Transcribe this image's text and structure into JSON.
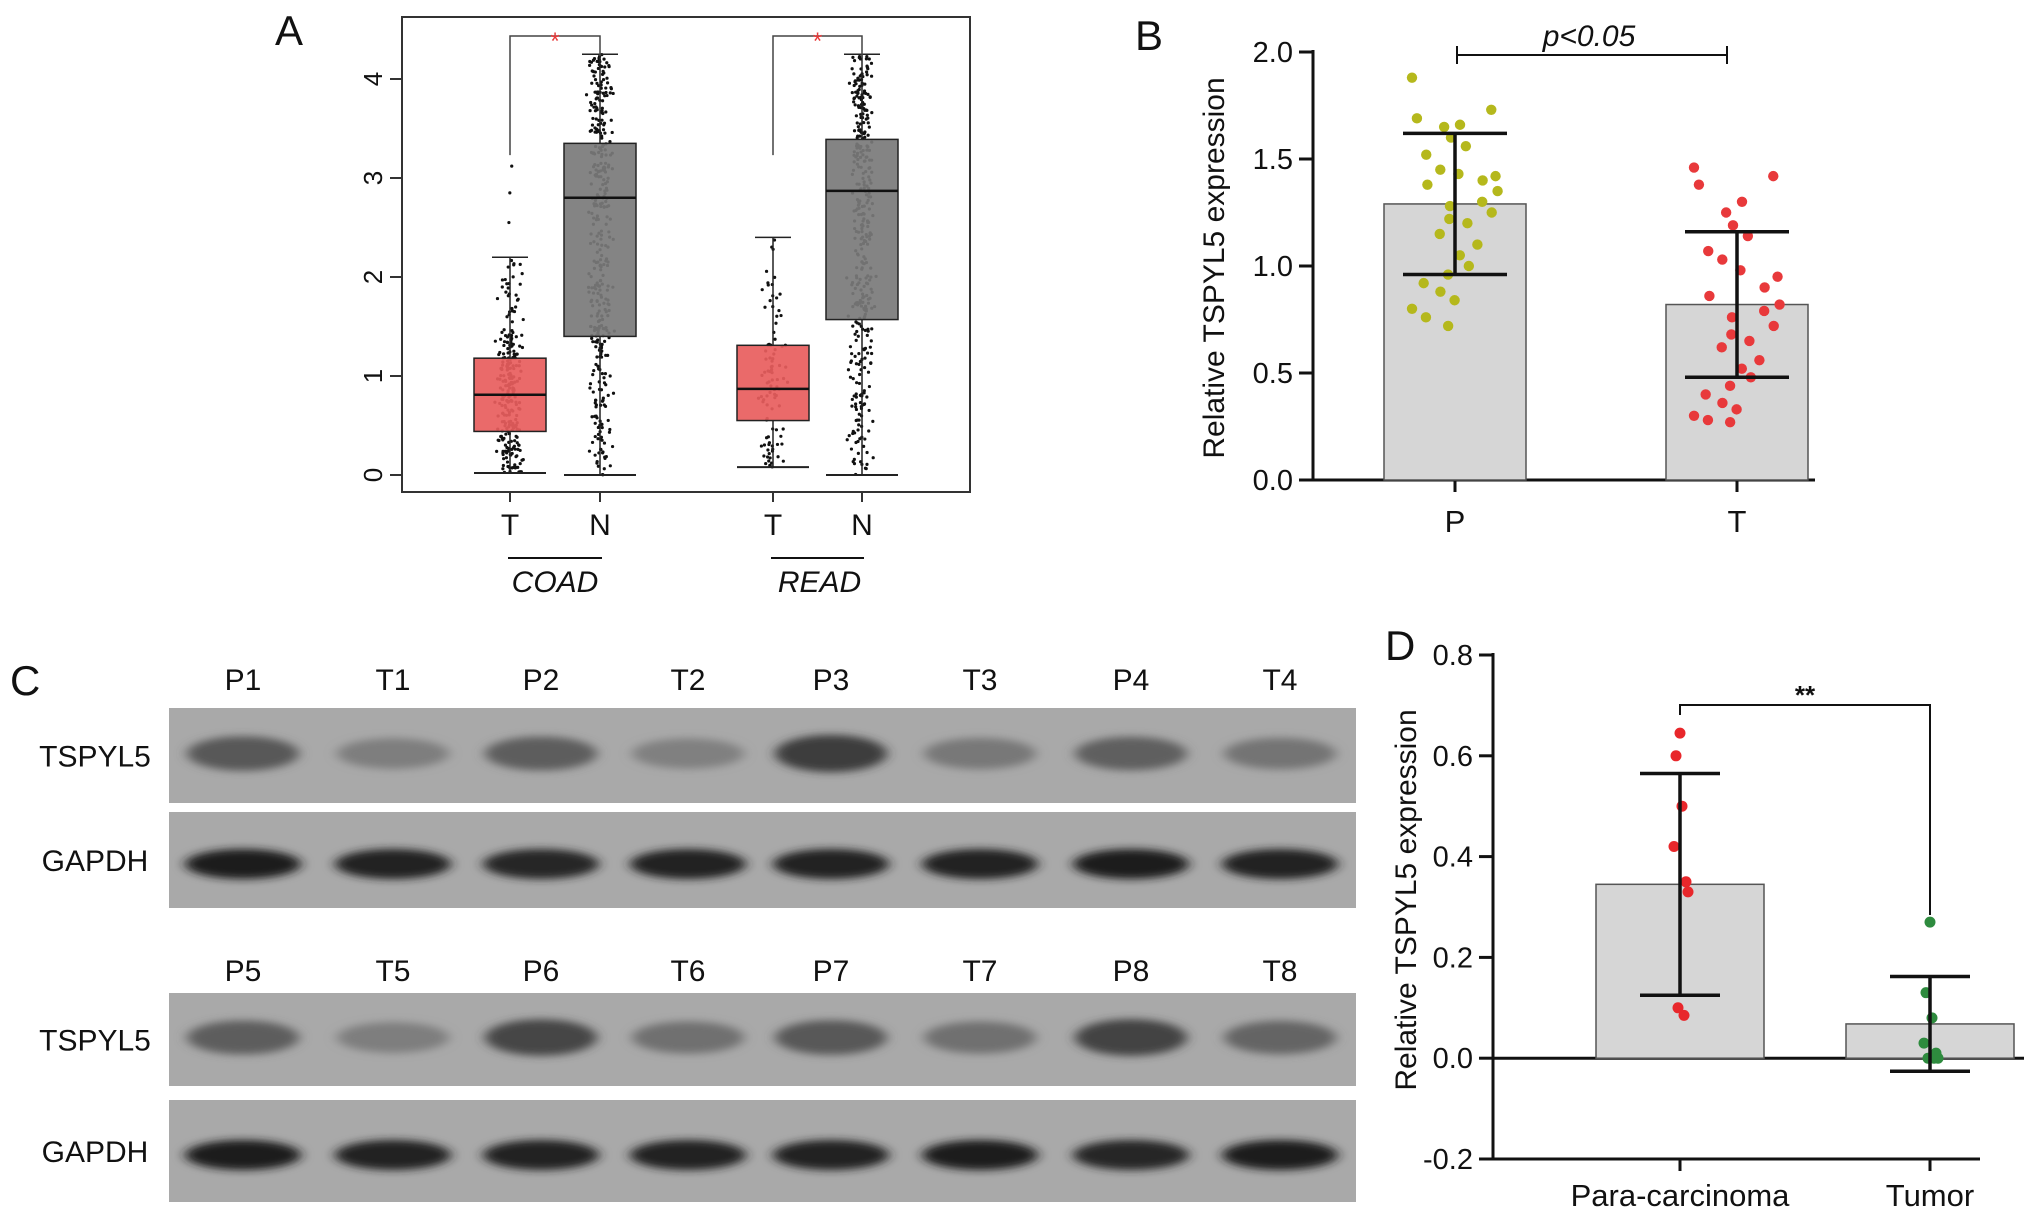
{
  "panels": {
    "a": {
      "label": "A",
      "significance": "*",
      "chart_data": {
        "type": "box",
        "ylim": [
          -0.2,
          4.5
        ],
        "yticks": [
          0,
          1,
          2,
          3,
          4
        ],
        "groups": [
          {
            "name": "COAD",
            "boxes": [
              {
                "label": "T",
                "whisker_low": 0.02,
                "q1": 0.44,
                "median": 0.81,
                "q3": 1.18,
                "whisker_high": 2.2,
                "max": 3.12,
                "color": "#e85d5d"
              },
              {
                "label": "N",
                "whisker_low": 0.0,
                "q1": 1.4,
                "median": 2.8,
                "q3": 3.35,
                "whisker_high": 4.25,
                "max": 4.25,
                "color": "#7a7a7a"
              }
            ]
          },
          {
            "name": "READ",
            "boxes": [
              {
                "label": "T",
                "whisker_low": 0.08,
                "q1": 0.55,
                "median": 0.87,
                "q3": 1.31,
                "whisker_high": 2.4,
                "max": 2.4,
                "color": "#e85d5d"
              },
              {
                "label": "N",
                "whisker_low": 0.0,
                "q1": 1.57,
                "median": 2.87,
                "q3": 3.39,
                "whisker_high": 4.25,
                "max": 4.25,
                "color": "#7a7a7a"
              }
            ]
          }
        ]
      }
    },
    "b": {
      "label": "B",
      "annotation": "p<0.05",
      "chart_data": {
        "type": "bar",
        "ylabel": "Relative TSPYL5 expression",
        "ylim": [
          0,
          2.0
        ],
        "yticks": [
          "0.0",
          "0.5",
          "1.0",
          "1.5",
          "2.0"
        ],
        "categories": [
          "P",
          "T"
        ],
        "values": [
          1.29,
          0.82
        ],
        "sd": [
          0.33,
          0.34
        ],
        "point_colors": [
          "#b5b81c",
          "#e8393b"
        ],
        "points": [
          [
            1.88,
            1.73,
            1.69,
            1.66,
            1.65,
            1.6,
            1.56,
            1.52,
            1.45,
            1.43,
            1.42,
            1.4,
            1.38,
            1.35,
            1.3,
            1.28,
            1.25,
            1.22,
            1.2,
            1.15,
            1.1,
            1.05,
            1.0,
            0.96,
            0.92,
            0.88,
            0.84,
            0.8,
            0.76,
            0.72
          ],
          [
            1.46,
            1.42,
            1.38,
            1.3,
            1.25,
            1.19,
            1.14,
            1.07,
            1.03,
            0.98,
            0.95,
            0.9,
            0.86,
            0.82,
            0.79,
            0.76,
            0.72,
            0.68,
            0.65,
            0.62,
            0.56,
            0.52,
            0.48,
            0.44,
            0.4,
            0.36,
            0.33,
            0.3,
            0.28,
            0.27
          ]
        ]
      }
    },
    "c": {
      "label": "C",
      "blots": [
        {
          "lanes": [
            "P1",
            "T1",
            "P2",
            "T2",
            "P3",
            "T3",
            "P4",
            "T4"
          ],
          "rows": [
            {
              "name": "TSPYL5",
              "intensities": [
                0.55,
                0.22,
                0.5,
                0.2,
                0.78,
                0.28,
                0.48,
                0.3
              ]
            },
            {
              "name": "GAPDH",
              "intensities": [
                0.95,
                0.9,
                0.85,
                0.88,
                0.9,
                0.88,
                0.92,
                0.9
              ]
            }
          ]
        },
        {
          "lanes": [
            "P5",
            "T5",
            "P6",
            "T6",
            "P7",
            "T7",
            "P8",
            "T8"
          ],
          "rows": [
            {
              "name": "TSPYL5",
              "intensities": [
                0.5,
                0.22,
                0.7,
                0.35,
                0.55,
                0.35,
                0.72,
                0.45
              ]
            },
            {
              "name": "GAPDH",
              "intensities": [
                0.95,
                0.9,
                0.88,
                0.88,
                0.88,
                0.92,
                0.85,
                0.92
              ]
            }
          ]
        }
      ]
    },
    "d": {
      "label": "D",
      "annotation": "**",
      "chart_data": {
        "type": "bar",
        "ylabel": "Relative TSPYL5 expression",
        "ylim": [
          -0.2,
          0.8
        ],
        "yticks": [
          "-0.2",
          "0.0",
          "0.2",
          "0.4",
          "0.6",
          "0.8"
        ],
        "categories": [
          "Para-carcinoma",
          "Tumor"
        ],
        "values": [
          0.345,
          0.068
        ],
        "sd": [
          0.22,
          0.094
        ],
        "point_colors": [
          "#e8272b",
          "#2e8b3e"
        ],
        "points": [
          [
            0.645,
            0.6,
            0.5,
            0.42,
            0.35,
            0.33,
            0.1,
            0.085
          ],
          [
            0.27,
            0.13,
            0.08,
            0.03,
            0.01,
            0.0,
            0.0,
            0.0
          ]
        ]
      }
    }
  }
}
